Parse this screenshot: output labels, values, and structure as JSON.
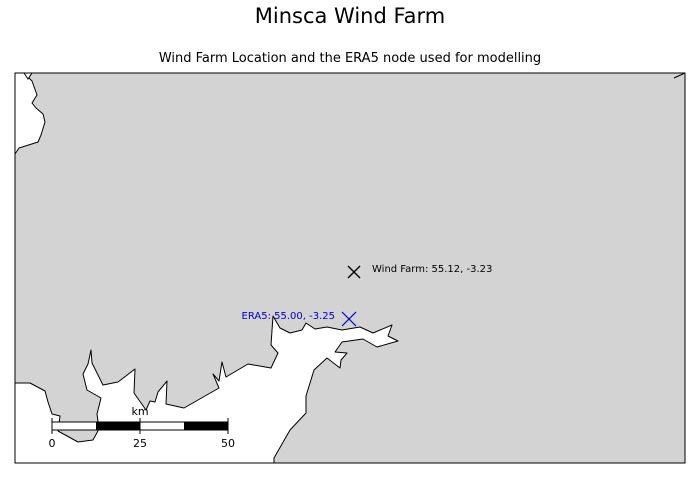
{
  "title": "Minsca Wind Farm",
  "subtitle": "Wind Farm Location and the ERA5 node used for modelling",
  "colors": {
    "sea": "#ffffff",
    "land": "#d3d3d3",
    "coastline": "#000000",
    "wind_farm_marker": "#000000",
    "era5_marker": "#0000cc"
  },
  "markers": {
    "wind_farm": {
      "label": "Wind Farm: 55.12, -3.23",
      "lat": 55.12,
      "lon": -3.23,
      "symbol": "x-icon"
    },
    "era5": {
      "label": "ERA5: 55.00, -3.25",
      "lat": 55.0,
      "lon": -3.25,
      "symbol": "x-icon"
    }
  },
  "scale_bar": {
    "unit": "km",
    "ticks": [
      "0",
      "25",
      "50"
    ]
  }
}
